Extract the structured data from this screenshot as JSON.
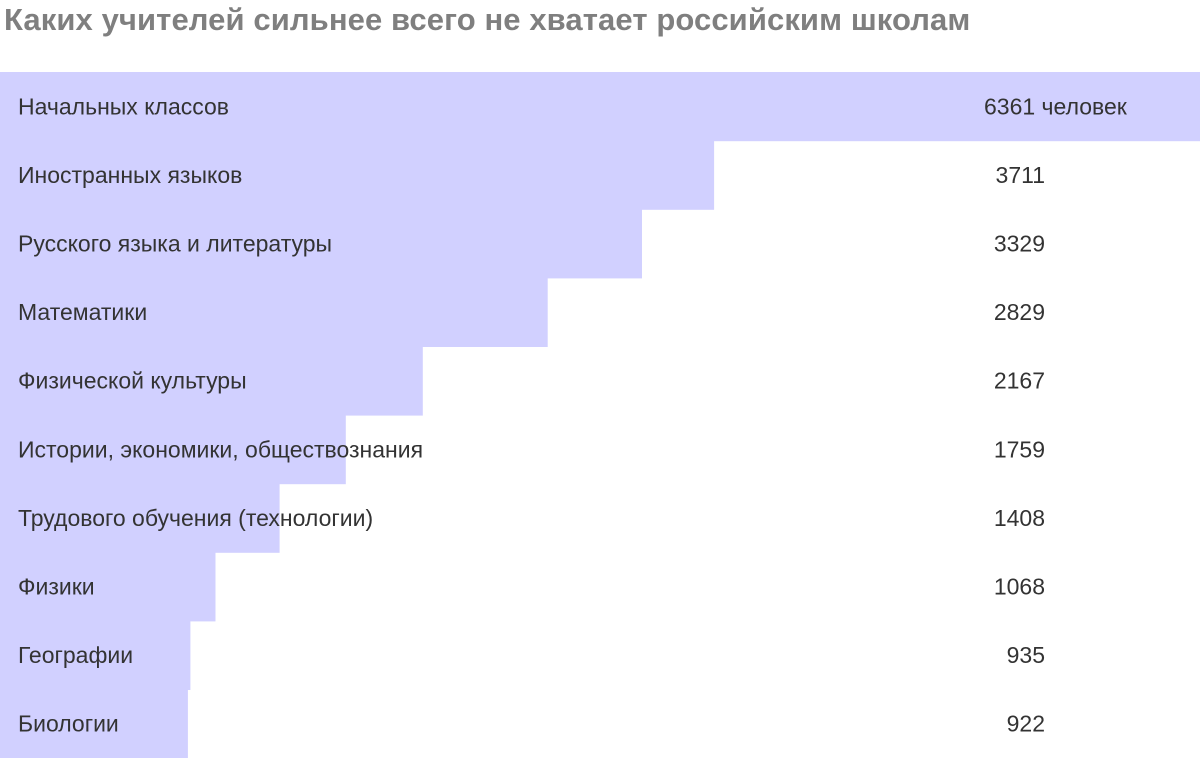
{
  "chart_data": {
    "type": "bar",
    "orientation": "horizontal",
    "title": "Каких учителей сильнее всего не хватает российским школам",
    "categories": [
      "Начальных классов",
      "Иностранных языков",
      "Русского языка и литературы",
      "Математики",
      "Физической культуры",
      "Истории, экономики, обществознания",
      "Трудового обучения (технологии)",
      "Физики",
      "Географии",
      "Биологии"
    ],
    "values": [
      6361,
      3711,
      3329,
      2829,
      2167,
      1759,
      1408,
      1068,
      935,
      922
    ],
    "value_labels": [
      "6361 человек",
      "3711",
      "3329",
      "2829",
      "2167",
      "1759",
      "1408",
      "1068",
      "935",
      "922"
    ],
    "bar_color": "#d1d0ff",
    "text_color": "#333333",
    "title_color": "#7f7f7f",
    "grid": false,
    "legend": "none"
  }
}
